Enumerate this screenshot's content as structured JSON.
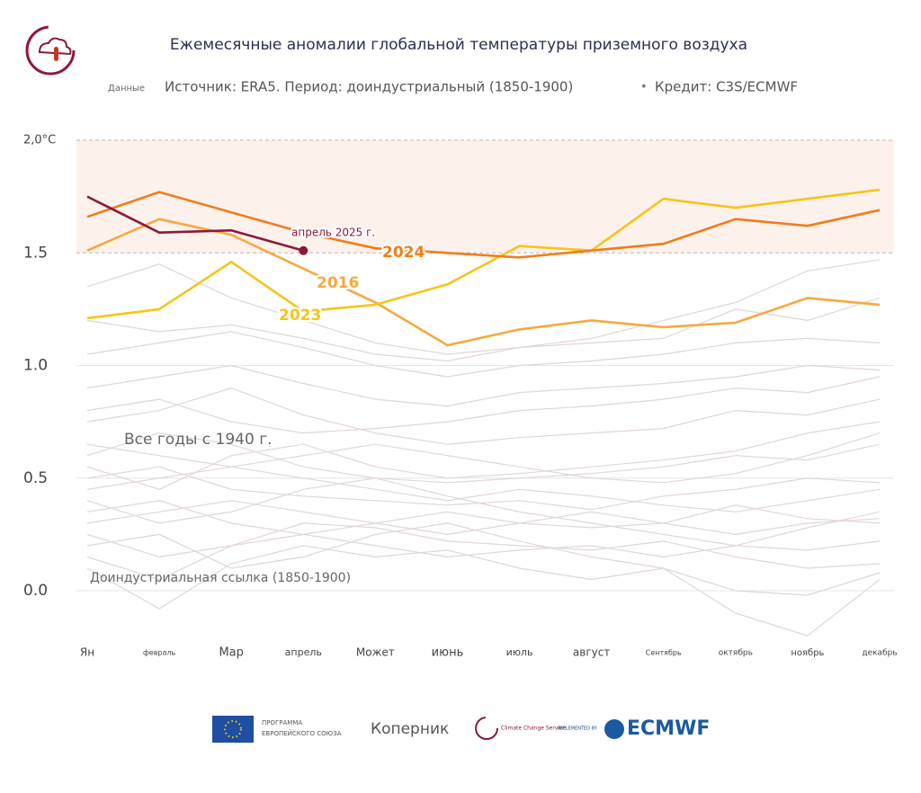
{
  "chart_data": {
    "type": "line",
    "title": "Ежемесячные аномалии глобальной температуры приземного воздуха",
    "subtitle_prefix": "Данные",
    "source": "Источник: ERA5. Период: доиндустриальный (1850-1900)",
    "bullet": "•",
    "credit": "Кредит: C3S/ECMWF",
    "categories": [
      "Ян",
      "февраль",
      "Мар",
      "апрель",
      "Может",
      "июнь",
      "июль",
      "август",
      "Сентябрь",
      "октябрь",
      "ноябрь",
      "декабрь"
    ],
    "ylim": [
      -0.25,
      2.0
    ],
    "yticks": [
      {
        "value": 0,
        "label": "0.0"
      },
      {
        "value": 0.5,
        "label": "0.5"
      },
      {
        "value": 1,
        "label": "1.0"
      },
      {
        "value": 1.5,
        "label": "1.5"
      },
      {
        "value": 2,
        "label": "2,0°C"
      }
    ],
    "band": [
      1.5,
      2.0
    ],
    "series": [
      {
        "name": "2016",
        "color": "#f6a93f",
        "values": [
          1.51,
          1.65,
          1.58,
          1.43,
          1.28,
          1.09,
          1.16,
          1.2,
          1.17,
          1.19,
          1.3,
          1.27
        ]
      },
      {
        "name": "2023",
        "color": "#f5c518",
        "values": [
          1.21,
          1.25,
          1.46,
          1.24,
          1.27,
          1.36,
          1.53,
          1.51,
          1.74,
          1.7,
          1.74,
          1.78
        ]
      },
      {
        "name": "2024",
        "color": "#f07d1a",
        "values": [
          1.66,
          1.77,
          1.68,
          1.59,
          1.52,
          1.5,
          1.48,
          1.51,
          1.54,
          1.65,
          1.62,
          1.69
        ]
      },
      {
        "name": "апрель 2025 г.",
        "color": "#8b1a3a",
        "values": [
          1.75,
          1.59,
          1.6,
          1.51,
          null,
          null,
          null,
          null,
          null,
          null,
          null,
          null
        ]
      }
    ],
    "other_years": {
      "label": "Все годы с 1940 г.",
      "color": "#e2d6d6",
      "values": [
        [
          0.25,
          0.15,
          0.2,
          0.3,
          0.28,
          0.22,
          0.2,
          0.18,
          0.22,
          0.15,
          0.1,
          0.12
        ],
        [
          0.1,
          -0.08,
          0.12,
          0.2,
          0.15,
          0.18,
          0.1,
          0.05,
          0.1,
          0.0,
          -0.02,
          0.08
        ],
        [
          0.35,
          0.4,
          0.3,
          0.25,
          0.3,
          0.35,
          0.3,
          0.28,
          0.3,
          0.38,
          0.32,
          0.3
        ],
        [
          0.5,
          0.55,
          0.45,
          0.42,
          0.4,
          0.38,
          0.4,
          0.36,
          0.42,
          0.45,
          0.5,
          0.48
        ],
        [
          0.6,
          0.7,
          0.65,
          0.55,
          0.5,
          0.48,
          0.5,
          0.52,
          0.55,
          0.6,
          0.58,
          0.65
        ],
        [
          0.75,
          0.8,
          0.9,
          0.78,
          0.7,
          0.65,
          0.68,
          0.7,
          0.72,
          0.8,
          0.78,
          0.85
        ],
        [
          0.9,
          0.95,
          1.0,
          0.92,
          0.85,
          0.82,
          0.88,
          0.9,
          0.92,
          0.95,
          1.0,
          0.98
        ],
        [
          1.05,
          1.1,
          1.15,
          1.08,
          1.0,
          0.95,
          1.0,
          1.02,
          1.05,
          1.1,
          1.12,
          1.1
        ],
        [
          1.2,
          1.15,
          1.18,
          1.12,
          1.05,
          1.02,
          1.08,
          1.1,
          1.12,
          1.25,
          1.2,
          1.3
        ],
        [
          1.35,
          1.45,
          1.3,
          1.2,
          1.1,
          1.05,
          1.08,
          1.12,
          1.2,
          1.28,
          1.42,
          1.47
        ],
        [
          0.4,
          0.3,
          0.35,
          0.45,
          0.5,
          0.42,
          0.35,
          0.3,
          0.25,
          0.2,
          0.28,
          0.35
        ],
        [
          0.2,
          0.25,
          0.1,
          0.15,
          0.25,
          0.3,
          0.22,
          0.15,
          0.1,
          -0.1,
          -0.2,
          0.05
        ],
        [
          0.65,
          0.6,
          0.55,
          0.6,
          0.65,
          0.6,
          0.55,
          0.5,
          0.48,
          0.52,
          0.6,
          0.7
        ],
        [
          0.3,
          0.35,
          0.4,
          0.35,
          0.3,
          0.25,
          0.3,
          0.35,
          0.3,
          0.25,
          0.3,
          0.32
        ],
        [
          0.8,
          0.85,
          0.75,
          0.7,
          0.72,
          0.75,
          0.8,
          0.82,
          0.85,
          0.9,
          0.88,
          0.95
        ],
        [
          0.45,
          0.5,
          0.55,
          0.5,
          0.45,
          0.4,
          0.45,
          0.42,
          0.38,
          0.35,
          0.4,
          0.45
        ],
        [
          0.15,
          0.05,
          0.2,
          0.25,
          0.2,
          0.15,
          0.18,
          0.2,
          0.15,
          0.2,
          0.18,
          0.22
        ],
        [
          0.55,
          0.45,
          0.6,
          0.65,
          0.55,
          0.5,
          0.52,
          0.55,
          0.58,
          0.62,
          0.7,
          0.75
        ]
      ]
    },
    "reference_label": "Доиндустриальная ссылка (1850-1900)"
  },
  "footer": {
    "eu": "ПРОГРАММА ЕВРОПЕЙСКОГО СОЮЗА",
    "copernicus": "Коперник",
    "c3s": "Climate Change Service",
    "implemented": "IMPLEMENTED BY",
    "ecmwf": "ECMWF"
  }
}
